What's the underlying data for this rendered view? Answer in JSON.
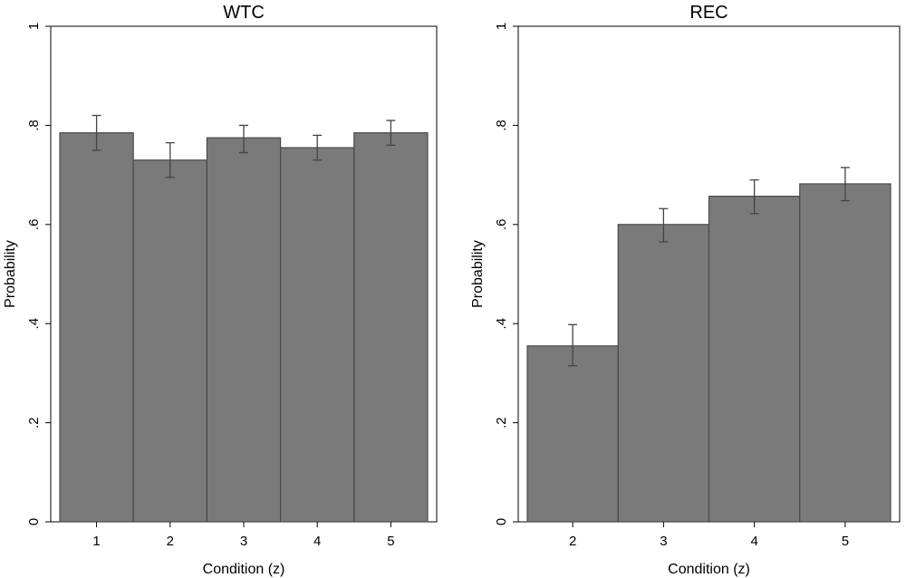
{
  "chart_data": [
    {
      "type": "bar",
      "title": "WTC",
      "xlabel": "Condition (z)",
      "ylabel": "Probability",
      "ylim": [
        0,
        1
      ],
      "yticks": [
        0,
        0.2,
        0.4,
        0.6,
        0.8,
        1
      ],
      "ytick_labels": [
        "0",
        ".2",
        ".4",
        ".6",
        ".8",
        "1"
      ],
      "categories": [
        "1",
        "2",
        "3",
        "4",
        "5"
      ],
      "values": [
        0.785,
        0.73,
        0.775,
        0.755,
        0.785
      ],
      "err_low": [
        0.75,
        0.695,
        0.745,
        0.73,
        0.76
      ],
      "err_high": [
        0.82,
        0.765,
        0.8,
        0.78,
        0.81
      ],
      "bar_color": "#7a7a7a",
      "grid": false
    },
    {
      "type": "bar",
      "title": "REC",
      "xlabel": "Condition (z)",
      "ylabel": "Probability",
      "ylim": [
        0,
        1
      ],
      "yticks": [
        0,
        0.2,
        0.4,
        0.6,
        0.8,
        1
      ],
      "ytick_labels": [
        "0",
        ".2",
        ".4",
        ".6",
        ".8",
        "1"
      ],
      "categories": [
        "2",
        "3",
        "4",
        "5"
      ],
      "values": [
        0.355,
        0.6,
        0.657,
        0.682
      ],
      "err_low": [
        0.315,
        0.565,
        0.622,
        0.648
      ],
      "err_high": [
        0.398,
        0.632,
        0.69,
        0.715
      ],
      "bar_color": "#7a7a7a",
      "grid": false
    }
  ]
}
